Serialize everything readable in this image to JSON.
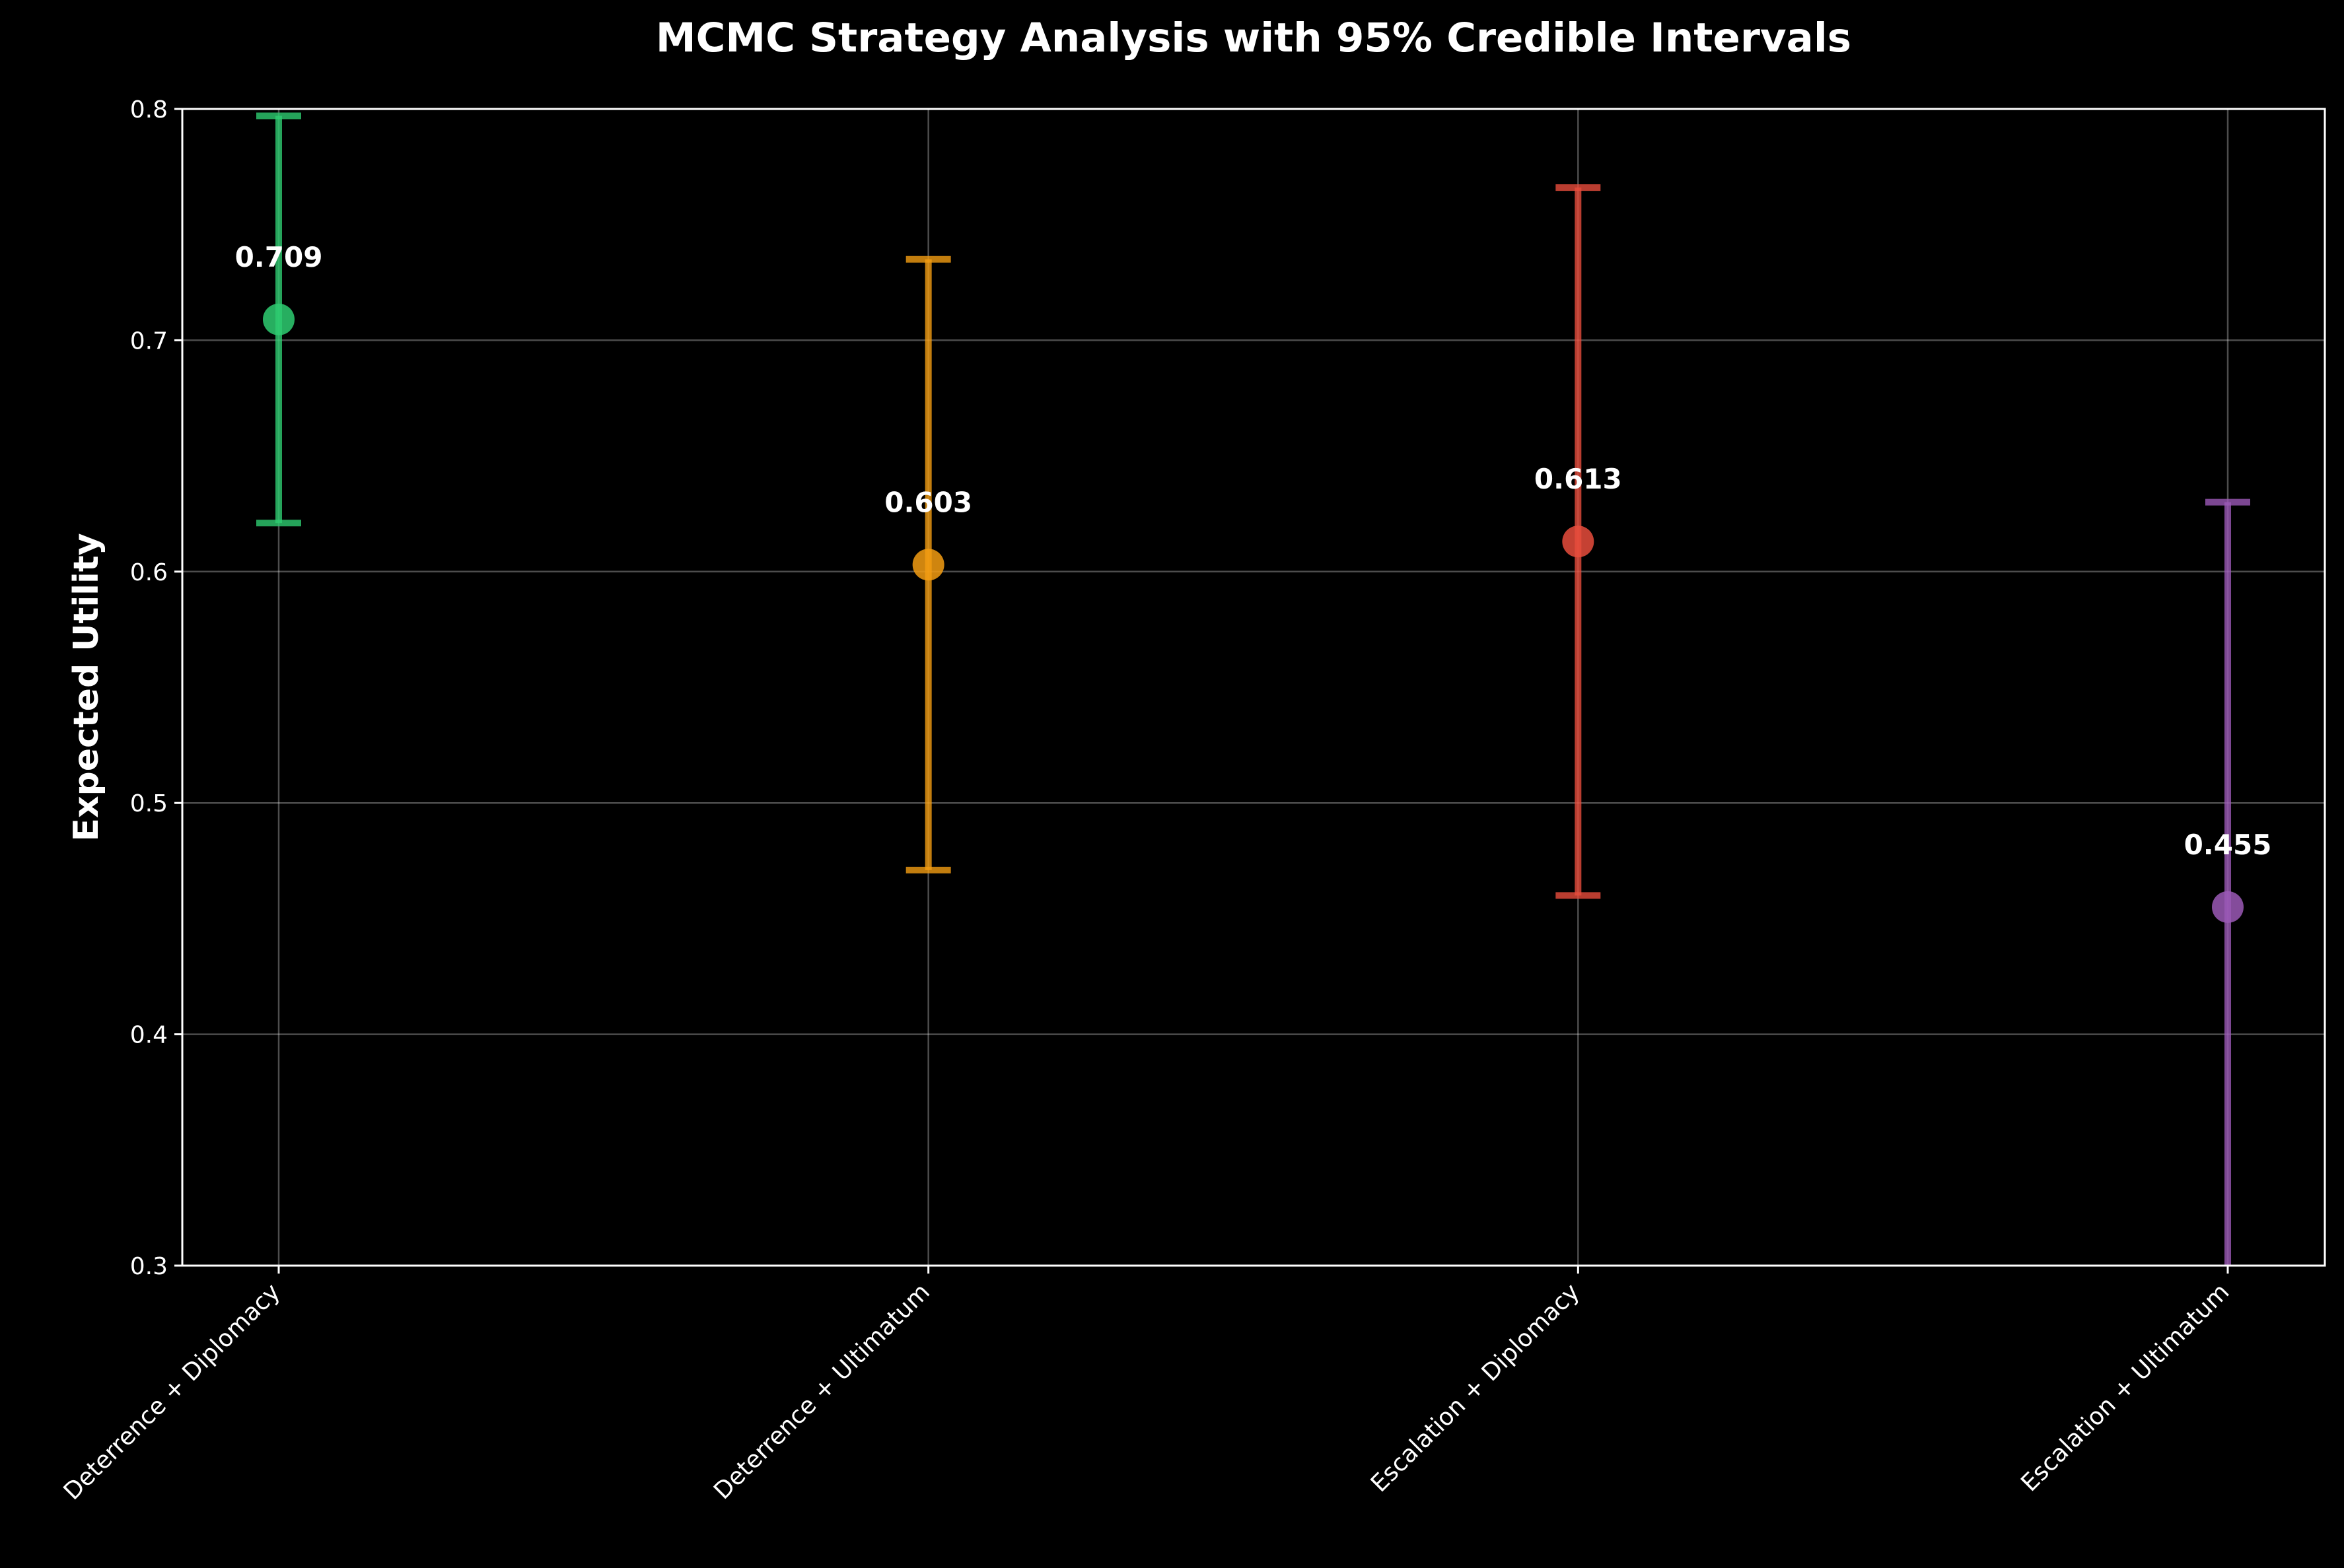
{
  "chart_data": {
    "type": "scatter",
    "title": "MCMC Strategy Analysis with 95% Credible Intervals",
    "xlabel": "",
    "ylabel": "Expected Utility",
    "ylim": [
      0.3,
      0.8
    ],
    "yticks": [
      "0.3",
      "0.4",
      "0.5",
      "0.6",
      "0.7",
      "0.8"
    ],
    "grid": true,
    "categories": [
      "Deterrence + Diplomacy",
      "Deterrence + Ultimatum",
      "Escalation + Diplomacy",
      "Escalation + Ultimatum"
    ],
    "points": [
      {
        "category": "Deterrence + Diplomacy",
        "mean": 0.709,
        "lower": 0.621,
        "upper": 0.797,
        "label": "0.709",
        "color": "#2ecc71"
      },
      {
        "category": "Deterrence + Ultimatum",
        "mean": 0.603,
        "lower": 0.471,
        "upper": 0.735,
        "label": "0.603",
        "color": "#f39c12"
      },
      {
        "category": "Escalation + Diplomacy",
        "mean": 0.613,
        "lower": 0.46,
        "upper": 0.766,
        "label": "0.613",
        "color": "#e74c3c"
      },
      {
        "category": "Escalation + Ultimatum",
        "mean": 0.455,
        "lower": 0.28,
        "upper": 0.63,
        "label": "0.455",
        "color": "#9b59b6"
      }
    ]
  }
}
